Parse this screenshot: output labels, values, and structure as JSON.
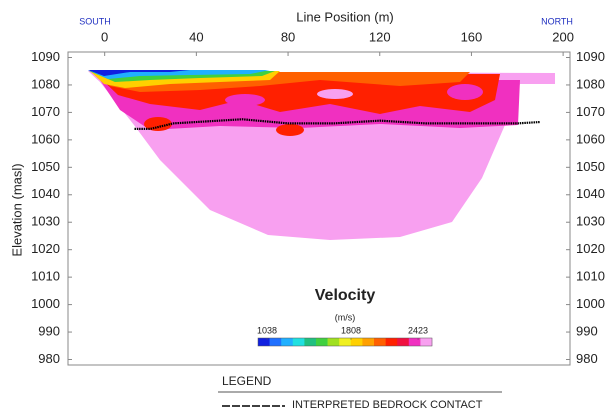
{
  "chart_data": {
    "type": "section",
    "xlabel": "Line Position (m)",
    "ylabel": "Elevation (masl)",
    "left_label": "SOUTH",
    "right_label": "NORTH",
    "xlim": [
      -16,
      203
    ],
    "xticks": [
      0,
      40,
      80,
      120,
      160,
      200
    ],
    "ylim": [
      978,
      1092
    ],
    "yticks": [
      980,
      990,
      1000,
      1010,
      1020,
      1030,
      1040,
      1050,
      1060,
      1070,
      1080,
      1090
    ],
    "y2lim": [
      978,
      1092
    ],
    "y2ticks": [
      980,
      990,
      1000,
      1010,
      1020,
      1030,
      1040,
      1050,
      1060,
      1070,
      1080,
      1090
    ],
    "colorbar": {
      "title": "Velocity",
      "unit": "(m/s)",
      "clim": [
        955,
        2551
      ],
      "ticks": [
        1038,
        1808,
        2423
      ],
      "colors": [
        "#1020e0",
        "#2070ff",
        "#20b0ff",
        "#20e0e0",
        "#20c080",
        "#40d040",
        "#a0e020",
        "#f0f020",
        "#ffd000",
        "#ffa000",
        "#ff6000",
        "#ff2000",
        "#f01040",
        "#f030c0",
        "#f8a0f0"
      ]
    },
    "legend_title": "LEGEND",
    "series": [
      {
        "name": "INTERPRETED BEDROCK CONTACT",
        "color": "#000000",
        "x": [
          13,
          20,
          30,
          50,
          60,
          80,
          100,
          120,
          140,
          160,
          180,
          190
        ],
        "values": [
          1064,
          1064,
          1066,
          1067,
          1067.5,
          1066,
          1066,
          1067,
          1066,
          1066,
          1066,
          1066.5
        ]
      }
    ]
  }
}
